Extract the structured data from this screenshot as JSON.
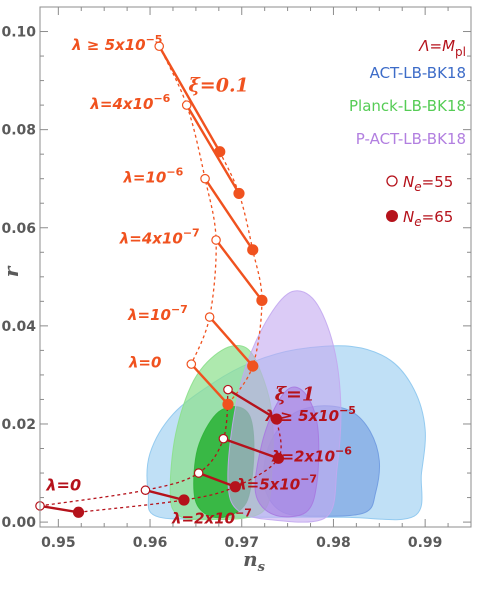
{
  "chart_data": {
    "type": "scatter",
    "xlabel": "n",
    "xlabel_sub": "s",
    "ylabel": "r",
    "xlim": [
      0.948,
      0.995
    ],
    "ylim": [
      -0.001,
      0.105
    ],
    "xticks": [
      0.95,
      0.96,
      0.97,
      0.98,
      0.99
    ],
    "xtick_labels": [
      "0.95",
      "0.96",
      "0.97",
      "0.98",
      "0.99"
    ],
    "yticks": [
      0.0,
      0.02,
      0.04,
      0.06,
      0.08,
      0.1
    ],
    "ytick_labels": [
      "0.00",
      "0.02",
      "0.04",
      "0.06",
      "0.08",
      "0.10"
    ],
    "grid": false,
    "legend_position": "top-right",
    "legend": {
      "header": {
        "base": "Λ=M",
        "sub": "pl",
        "color": "#b5121b"
      },
      "datasets": [
        {
          "name": "ACT-LB-BK18",
          "color": "#3d6cc8"
        },
        {
          "name": "Planck-LB-BK18",
          "color": "#55cc55"
        },
        {
          "name": "P-ACT-LB-BK18",
          "color": "#b27fe0"
        }
      ],
      "markers": [
        {
          "prefix": "N",
          "sub": "e",
          "suffix": "=55",
          "style": "open"
        },
        {
          "prefix": "N",
          "sub": "e",
          "suffix": "=65",
          "style": "filled"
        }
      ]
    },
    "contours": [
      {
        "dataset": "ACT-LB-BK18",
        "level": "95%",
        "color": "#8cc6ee",
        "opacity": 0.55,
        "points": [
          [
            0.9598,
            0.006
          ],
          [
            0.96,
            0.014
          ],
          [
            0.9625,
            0.022
          ],
          [
            0.967,
            0.0285
          ],
          [
            0.971,
            0.0325
          ],
          [
            0.976,
            0.0352
          ],
          [
            0.982,
            0.0358
          ],
          [
            0.9862,
            0.033
          ],
          [
            0.9888,
            0.027
          ],
          [
            0.99,
            0.019
          ],
          [
            0.9896,
            0.01
          ],
          [
            0.9888,
            0.0012
          ],
          [
            0.981,
            0.001
          ],
          [
            0.97,
            0.001
          ],
          [
            0.961,
            0.001
          ]
        ]
      },
      {
        "dataset": "ACT-LB-BK18",
        "level": "68%",
        "color": "#6f9ae0",
        "opacity": 0.6,
        "points": [
          [
            0.9725,
            0.007
          ],
          [
            0.9727,
            0.014
          ],
          [
            0.974,
            0.019
          ],
          [
            0.976,
            0.0225
          ],
          [
            0.979,
            0.0237
          ],
          [
            0.982,
            0.0225
          ],
          [
            0.984,
            0.0185
          ],
          [
            0.985,
            0.0125
          ],
          [
            0.9846,
            0.006
          ],
          [
            0.9835,
            0.002
          ],
          [
            0.979,
            0.0012
          ],
          [
            0.9745,
            0.002
          ]
        ]
      },
      {
        "dataset": "Planck-LB-BK18",
        "level": "95%",
        "color": "#8ce08c",
        "opacity": 0.7,
        "points": [
          [
            0.9622,
            0.006
          ],
          [
            0.9628,
            0.018
          ],
          [
            0.9648,
            0.029
          ],
          [
            0.9678,
            0.035
          ],
          [
            0.9705,
            0.0355
          ],
          [
            0.9722,
            0.03
          ],
          [
            0.9733,
            0.022
          ],
          [
            0.9733,
            0.011
          ],
          [
            0.9722,
            0.002
          ],
          [
            0.966,
            0.0005
          ],
          [
            0.963,
            0.0015
          ]
        ]
      },
      {
        "dataset": "Planck-LB-BK18",
        "level": "68%",
        "color": "#2fb43a",
        "opacity": 0.9,
        "points": [
          [
            0.9648,
            0.006
          ],
          [
            0.9652,
            0.015
          ],
          [
            0.9672,
            0.022
          ],
          [
            0.9695,
            0.0235
          ],
          [
            0.971,
            0.021
          ],
          [
            0.9713,
            0.013
          ],
          [
            0.9705,
            0.004
          ],
          [
            0.968,
            0.001
          ],
          [
            0.9658,
            0.002
          ]
        ]
      },
      {
        "dataset": "P-ACT-LB-BK18",
        "level": "95%",
        "color": "#c3a8f0",
        "opacity": 0.6,
        "points": [
          [
            0.9685,
            0.008
          ],
          [
            0.969,
            0.02
          ],
          [
            0.9705,
            0.032
          ],
          [
            0.973,
            0.042
          ],
          [
            0.9755,
            0.047
          ],
          [
            0.978,
            0.045
          ],
          [
            0.98,
            0.036
          ],
          [
            0.9808,
            0.024
          ],
          [
            0.9804,
            0.011
          ],
          [
            0.9792,
            0.001
          ],
          [
            0.973,
            0.0005
          ],
          [
            0.9695,
            0.0025
          ]
        ]
      },
      {
        "dataset": "P-ACT-LB-BK18",
        "level": "68%",
        "color": "#a779e0",
        "opacity": 0.55,
        "points": [
          [
            0.9715,
            0.006
          ],
          [
            0.9722,
            0.016
          ],
          [
            0.9738,
            0.024
          ],
          [
            0.9755,
            0.0275
          ],
          [
            0.9772,
            0.0255
          ],
          [
            0.9783,
            0.019
          ],
          [
            0.9782,
            0.008
          ],
          [
            0.977,
            0.002
          ],
          [
            0.9735,
            0.0015
          ]
        ]
      }
    ],
    "series": [
      {
        "name": "ξ=0.1",
        "color": "#f0521f",
        "n55": [
          [
            0.961,
            0.097
          ],
          [
            0.964,
            0.085
          ],
          [
            0.966,
            0.07
          ],
          [
            0.9672,
            0.0575
          ],
          [
            0.9665,
            0.0418
          ],
          [
            0.9645,
            0.0322
          ]
        ],
        "n65": [
          [
            0.9676,
            0.0755
          ],
          [
            0.9697,
            0.067
          ],
          [
            0.9712,
            0.0555
          ],
          [
            0.9722,
            0.0452
          ],
          [
            0.9712,
            0.0318
          ],
          [
            0.9685,
            0.024
          ]
        ]
      },
      {
        "name": "ξ=1",
        "color": "#b5121b",
        "n55": [
          [
            0.948,
            0.0033
          ],
          [
            0.9595,
            0.0065
          ],
          [
            0.9653,
            0.01
          ],
          [
            0.968,
            0.017
          ],
          [
            0.9685,
            0.027
          ]
        ],
        "n65": [
          [
            0.9522,
            0.002
          ],
          [
            0.9637,
            0.0045
          ],
          [
            0.9693,
            0.0072
          ],
          [
            0.974,
            0.013
          ],
          [
            0.9738,
            0.021
          ]
        ]
      }
    ],
    "annotations": [
      {
        "text": "ξ=0.1",
        "x": 0.9642,
        "y": 0.0878,
        "color": "#f0521f",
        "size": 19,
        "italic": true
      },
      {
        "text": "ξ=1",
        "x": 0.9736,
        "y": 0.0248,
        "color": "#b5121b",
        "size": 19,
        "italic": true
      },
      {
        "text": "λ ≥ 5x10",
        "sup": "−5",
        "x": 0.9515,
        "y": 0.0962,
        "color": "#f0521f",
        "size": 15
      },
      {
        "text": "λ=4x10",
        "sup": "−6",
        "x": 0.9535,
        "y": 0.0842,
        "color": "#f0521f",
        "size": 15
      },
      {
        "text": "λ=10",
        "sup": "−6",
        "x": 0.9571,
        "y": 0.0692,
        "color": "#f0521f",
        "size": 15
      },
      {
        "text": "λ=4x10",
        "sup": "−7",
        "x": 0.9567,
        "y": 0.0568,
        "color": "#f0521f",
        "size": 15
      },
      {
        "text": "λ=10",
        "sup": "−7",
        "x": 0.9576,
        "y": 0.0412,
        "color": "#f0521f",
        "size": 15
      },
      {
        "text": "λ=0",
        "x": 0.9577,
        "y": 0.0315,
        "color": "#f0521f",
        "size": 15
      },
      {
        "text": "λ ≥ 5x10",
        "sup": "−5",
        "x": 0.9726,
        "y": 0.0206,
        "color": "#b5121b",
        "size": 15
      },
      {
        "text": "λ=2x10",
        "sup": "−6",
        "x": 0.9733,
        "y": 0.0124,
        "color": "#b5121b",
        "size": 15
      },
      {
        "text": "λ=5x10",
        "sup": "−7",
        "x": 0.9695,
        "y": 0.0066,
        "color": "#b5121b",
        "size": 15
      },
      {
        "text": "λ=2x10",
        "sup": "−7",
        "x": 0.9624,
        "y": -0.0003,
        "color": "#b5121b",
        "size": 15
      },
      {
        "text": "λ=0",
        "x": 0.9487,
        "y": 0.0064,
        "color": "#b5121b",
        "size": 16
      }
    ]
  }
}
